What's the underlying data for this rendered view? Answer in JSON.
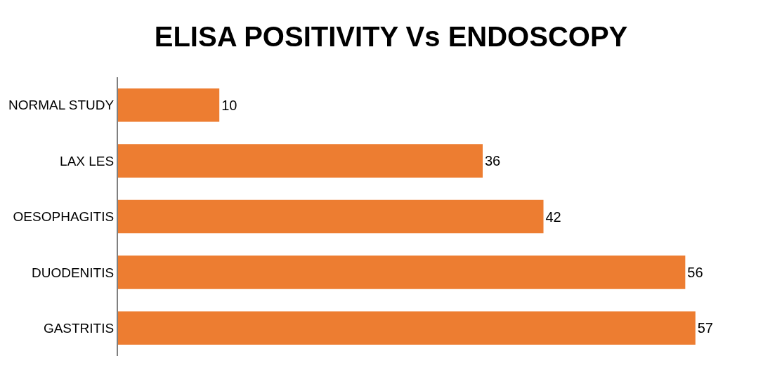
{
  "chart_data": {
    "type": "bar",
    "orientation": "horizontal",
    "title": "ELISA POSITIVITY Vs ENDOSCOPY",
    "categories": [
      "NORMAL STUDY",
      "LAX LES",
      "OESOPHAGITIS",
      "DUODENITIS",
      "GASTRITIS"
    ],
    "values": [
      10,
      36,
      42,
      56,
      57
    ],
    "color": "#ed7d31",
    "data_labels": true,
    "legend": false
  }
}
